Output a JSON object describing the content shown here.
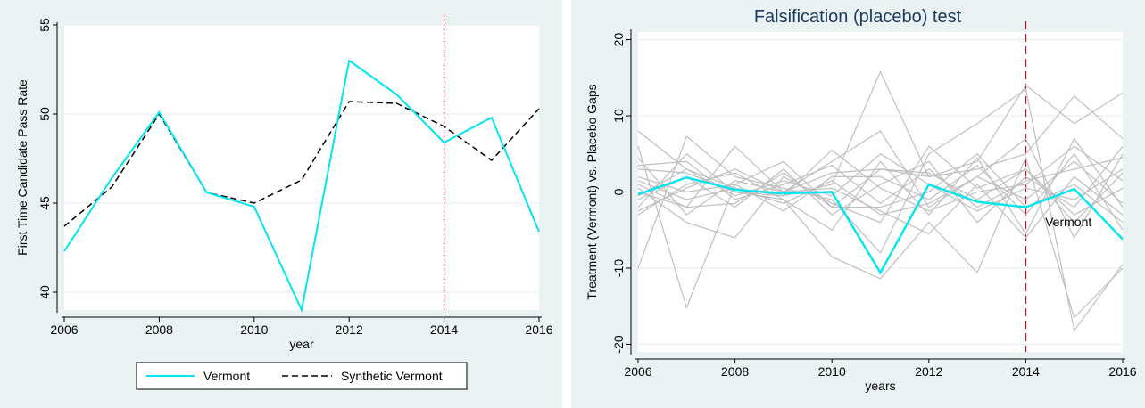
{
  "colors": {
    "background": "#eaf2f3",
    "plot_bg": "#ffffff",
    "grid": "#e6eef0",
    "vermont": "#00e5ee",
    "synthetic": "#000000",
    "placebo": "#bfbfbf",
    "treatment_line": "#b2182b"
  },
  "chart_data": [
    {
      "type": "line",
      "title": "",
      "xlabel": "year",
      "ylabel": "First Time Candidate Pass Rate",
      "xlim": [
        2006,
        2016
      ],
      "ylim": [
        39.0,
        55.0
      ],
      "x_ticks": [
        "2006",
        "2008",
        "2010",
        "2012",
        "2014",
        "2016"
      ],
      "y_ticks": [
        "40",
        "45",
        "50",
        "55"
      ],
      "treatment_year": 2014,
      "x": [
        2006,
        2007,
        2008,
        2009,
        2010,
        2011,
        2012,
        2013,
        2014,
        2015,
        2016
      ],
      "series": [
        {
          "name": "Vermont",
          "style": "solid",
          "values": [
            42.3,
            46.4,
            50.1,
            45.6,
            44.8,
            39.0,
            53.0,
            51.1,
            48.4,
            49.8,
            43.4
          ]
        },
        {
          "name": "Synthetic Vermont",
          "style": "dashed",
          "values": [
            43.7,
            45.9,
            50.0,
            45.6,
            45.0,
            46.3,
            50.7,
            50.6,
            49.3,
            47.4,
            50.3
          ]
        }
      ],
      "legend": {
        "position": "bottom",
        "entries": [
          "Vermont",
          "Synthetic Vermont"
        ]
      }
    },
    {
      "type": "line",
      "title": "Falsification (placebo) test",
      "xlabel": "years",
      "ylabel": "Treatment (Vermont) vs. Placebo Gaps",
      "xlim": [
        2006,
        2016
      ],
      "ylim": [
        -21,
        21
      ],
      "x_ticks": [
        "2006",
        "2008",
        "2010",
        "2012",
        "2014",
        "2016"
      ],
      "y_ticks": [
        "-20",
        "-10",
        "0",
        "10",
        "20"
      ],
      "treatment_year": 2014,
      "annotation": "Vermont",
      "x": [
        2006,
        2007,
        2008,
        2009,
        2010,
        2011,
        2012,
        2013,
        2014,
        2015,
        2016
      ],
      "treated": {
        "name": "Vermont",
        "values": [
          -0.3,
          1.9,
          0.3,
          -0.2,
          0.0,
          -10.6,
          1.0,
          -1.3,
          -2.0,
          0.4,
          -6.2
        ]
      },
      "placebos": [
        {
          "values": [
            8.0,
            3.0,
            0.5,
            -0.5,
            1.0,
            15.8,
            2.0,
            4.0,
            14.0,
            9.0,
            13.0
          ]
        },
        {
          "values": [
            -10.0,
            7.3,
            2.0,
            0.5,
            -1.0,
            -8.0,
            5.0,
            9.0,
            13.5,
            -18.2,
            -9.5
          ]
        },
        {
          "values": [
            6.0,
            -15.2,
            1.0,
            4.0,
            -2.0,
            3.0,
            2.0,
            3.0,
            5.0,
            12.6,
            7.0
          ]
        },
        {
          "values": [
            -2.0,
            5.0,
            0.0,
            -1.0,
            -8.5,
            -11.4,
            -4.0,
            -10.6,
            4.5,
            -16.5,
            -10.0
          ]
        },
        {
          "values": [
            1.0,
            -2.0,
            6.0,
            0.0,
            4.0,
            8.0,
            -2.0,
            2.0,
            7.0,
            -6.0,
            5.0
          ]
        },
        {
          "values": [
            3.5,
            4.0,
            -1.0,
            1.0,
            3.5,
            -1.5,
            3.0,
            -2.0,
            1.5,
            3.0,
            4.5
          ]
        },
        {
          "values": [
            -3.0,
            1.0,
            2.5,
            -1.0,
            -5.0,
            4.0,
            -3.0,
            4.5,
            -5.5,
            7.0,
            -2.0
          ]
        },
        {
          "values": [
            0.5,
            -4.0,
            -6.0,
            2.0,
            -1.5,
            -4.0,
            6.0,
            0.5,
            3.0,
            -4.0,
            2.5
          ]
        },
        {
          "values": [
            2.0,
            0.0,
            1.0,
            -2.5,
            2.0,
            2.0,
            -1.0,
            3.5,
            -3.0,
            5.0,
            -5.0
          ]
        },
        {
          "values": [
            -1.0,
            2.0,
            -2.0,
            3.0,
            -3.0,
            1.0,
            4.0,
            -4.0,
            2.0,
            -2.0,
            6.0
          ]
        },
        {
          "values": [
            4.5,
            -3.0,
            1.5,
            0.0,
            0.5,
            -2.5,
            -5.5,
            1.0,
            -6.0,
            2.0,
            -3.0
          ]
        },
        {
          "values": [
            -0.5,
            3.0,
            -0.5,
            1.5,
            -0.5,
            5.0,
            1.0,
            -2.5,
            0.5,
            -1.0,
            3.0
          ]
        },
        {
          "values": [
            1.5,
            -1.0,
            0.5,
            -1.5,
            1.5,
            -3.0,
            -1.5,
            2.0,
            -1.0,
            4.0,
            -1.5
          ]
        },
        {
          "values": [
            -2.5,
            0.5,
            3.0,
            0.0,
            2.5,
            3.0,
            2.5,
            -1.0,
            3.0,
            -3.0,
            0.5
          ]
        },
        {
          "values": [
            0.0,
            -2.0,
            -1.5,
            2.5,
            -2.0,
            -2.0,
            0.0,
            5.0,
            -2.0,
            1.0,
            -4.0
          ]
        },
        {
          "values": [
            3.0,
            2.5,
            0.0,
            -0.5,
            5.5,
            0.5,
            -2.5,
            0.0,
            1.0,
            6.0,
            1.5
          ]
        }
      ]
    }
  ]
}
